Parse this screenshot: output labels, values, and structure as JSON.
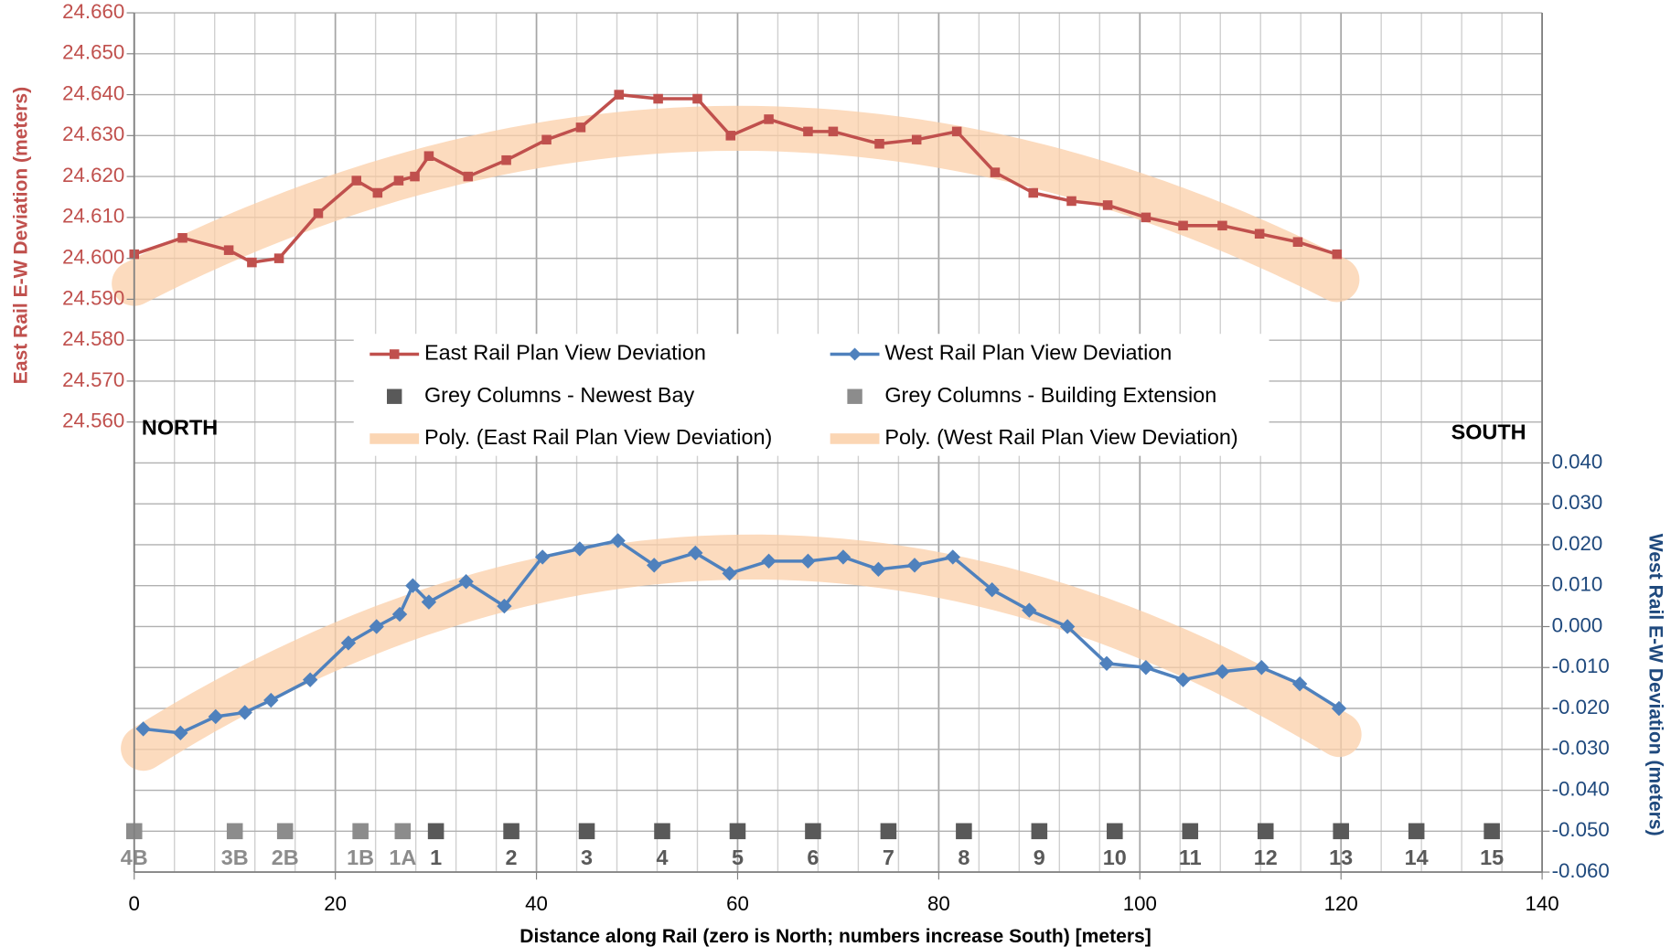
{
  "chart_data": {
    "type": "line",
    "x_label": "Distance along Rail (zero is North; numbers increase South) [meters]",
    "y_label": "East Rail E-W Deviation (meters)",
    "y2_label": "West Rail E-W Deviation (meters)",
    "annotations": [
      "NORTH",
      "SOUTH"
    ],
    "xlim": [
      0,
      140
    ],
    "xticks": [
      0,
      20,
      40,
      60,
      80,
      100,
      120,
      140
    ],
    "xminorticks": [
      4,
      8,
      12,
      16,
      24,
      28,
      32,
      36,
      44,
      48,
      52,
      56,
      64,
      68,
      72,
      76,
      84,
      88,
      92,
      96,
      104,
      108,
      112,
      116,
      124,
      128,
      132,
      136
    ],
    "ylim": [
      24.45,
      24.66
    ],
    "yticks": [
      {
        "value": 24.56,
        "label": "24.560"
      },
      {
        "value": 24.57,
        "label": "24.570"
      },
      {
        "value": 24.58,
        "label": "24.580"
      },
      {
        "value": 24.59,
        "label": "24.590"
      },
      {
        "value": 24.6,
        "label": "24.600"
      },
      {
        "value": 24.61,
        "label": "24.610"
      },
      {
        "value": 24.62,
        "label": "24.620"
      },
      {
        "value": 24.63,
        "label": "24.630"
      },
      {
        "value": 24.64,
        "label": "24.640"
      },
      {
        "value": 24.65,
        "label": "24.650"
      },
      {
        "value": 24.66,
        "label": "24.660"
      }
    ],
    "y2lim": [
      -0.06,
      0.15
    ],
    "y2ticks": [
      {
        "value": -0.06,
        "label": "-0.060"
      },
      {
        "value": -0.05,
        "label": "-0.050"
      },
      {
        "value": -0.04,
        "label": "-0.040"
      },
      {
        "value": -0.03,
        "label": "-0.030"
      },
      {
        "value": -0.02,
        "label": "-0.020"
      },
      {
        "value": -0.01,
        "label": "-0.010"
      },
      {
        "value": 0,
        "label": "0.000"
      },
      {
        "value": 0.01,
        "label": "0.010"
      },
      {
        "value": 0.02,
        "label": "0.020"
      },
      {
        "value": 0.03,
        "label": "0.030"
      },
      {
        "value": 0.04,
        "label": "0.040"
      }
    ],
    "grid": true,
    "legend": "center",
    "series": [
      {
        "name": "East Rail Plan View Deviation",
        "color": "#c0504d",
        "marker": "square",
        "line": true,
        "axis": "y",
        "trendline": {
          "name": "Poly. (East Rail Plan View Deviation)",
          "order": 2,
          "color": "#fbcfa8"
        },
        "x": [
          0,
          4.8,
          9.4,
          11.7,
          14.4,
          18.3,
          22.1,
          24.2,
          26.3,
          27.9,
          29.3,
          33.2,
          37.0,
          41.0,
          44.4,
          48.2,
          52.1,
          56.0,
          59.3,
          63.1,
          67.0,
          69.5,
          74.1,
          77.8,
          81.8,
          85.6,
          89.4,
          93.2,
          96.8,
          100.6,
          104.3,
          108.2,
          111.9,
          115.7,
          119.6
        ],
        "values": [
          24.601,
          24.605,
          24.602,
          24.599,
          24.6,
          24.611,
          24.619,
          24.616,
          24.619,
          24.62,
          24.625,
          24.62,
          24.624,
          24.629,
          24.632,
          24.64,
          24.639,
          24.639,
          24.63,
          24.634,
          24.631,
          24.631,
          24.628,
          24.629,
          24.631,
          24.621,
          24.616,
          24.614,
          24.613,
          24.61,
          24.608,
          24.608,
          24.606,
          24.604,
          24.601
        ]
      },
      {
        "name": "West Rail Plan View Deviation",
        "color": "#4f81bd",
        "marker": "diamond",
        "line": true,
        "axis": "y2",
        "trendline": {
          "name": "Poly. (West Rail Plan View Deviation)",
          "order": 2,
          "color": "#fbcfa8"
        },
        "x": [
          0.9,
          4.6,
          8.1,
          11.0,
          13.6,
          17.5,
          21.3,
          24.1,
          26.4,
          27.7,
          29.3,
          33.0,
          36.8,
          40.6,
          44.3,
          48.1,
          51.7,
          55.8,
          59.2,
          63.1,
          67.0,
          70.5,
          74.0,
          77.6,
          81.4,
          85.3,
          89.0,
          92.8,
          96.7,
          100.6,
          104.3,
          108.2,
          112.1,
          115.9,
          119.8
        ],
        "values": [
          -0.025,
          -0.026,
          -0.022,
          -0.021,
          -0.018,
          -0.013,
          -0.004,
          0,
          0.003,
          0.01,
          0.006,
          0.011,
          0.005,
          0.017,
          0.019,
          0.021,
          0.015,
          0.018,
          0.013,
          0.016,
          0.016,
          0.017,
          0.014,
          0.015,
          0.017,
          0.009,
          0.004,
          0,
          -0.009,
          -0.01,
          -0.013,
          -0.011,
          -0.01,
          -0.014,
          -0.02
        ]
      },
      {
        "name": "Grey Columns - Newest Bay",
        "color": "#595959",
        "marker": "square",
        "line": false,
        "axis": "y2",
        "x": [
          30,
          37.5,
          45,
          52.5,
          60,
          67.5,
          75,
          82.5,
          90,
          97.5,
          105,
          112.5,
          120,
          127.5,
          135
        ],
        "values": [
          -0.05,
          -0.05,
          -0.05,
          -0.05,
          -0.05,
          -0.05,
          -0.05,
          -0.05,
          -0.05,
          -0.05,
          -0.05,
          -0.05,
          -0.05,
          -0.05,
          -0.05
        ],
        "labels": [
          "1",
          "2",
          "3",
          "4",
          "5",
          "6",
          "7",
          "8",
          "9",
          "10",
          "11",
          "12",
          "13",
          "14",
          "15"
        ]
      },
      {
        "name": "Grey Columns - Building Extension",
        "color": "#8c8c8c",
        "marker": "square",
        "line": false,
        "axis": "y2",
        "x": [
          0,
          10,
          15,
          22.5,
          26.7
        ],
        "values": [
          -0.05,
          -0.05,
          -0.05,
          -0.05,
          -0.05
        ],
        "labels": [
          "4B",
          "3B",
          "2B",
          "1B",
          "1A"
        ]
      }
    ]
  }
}
